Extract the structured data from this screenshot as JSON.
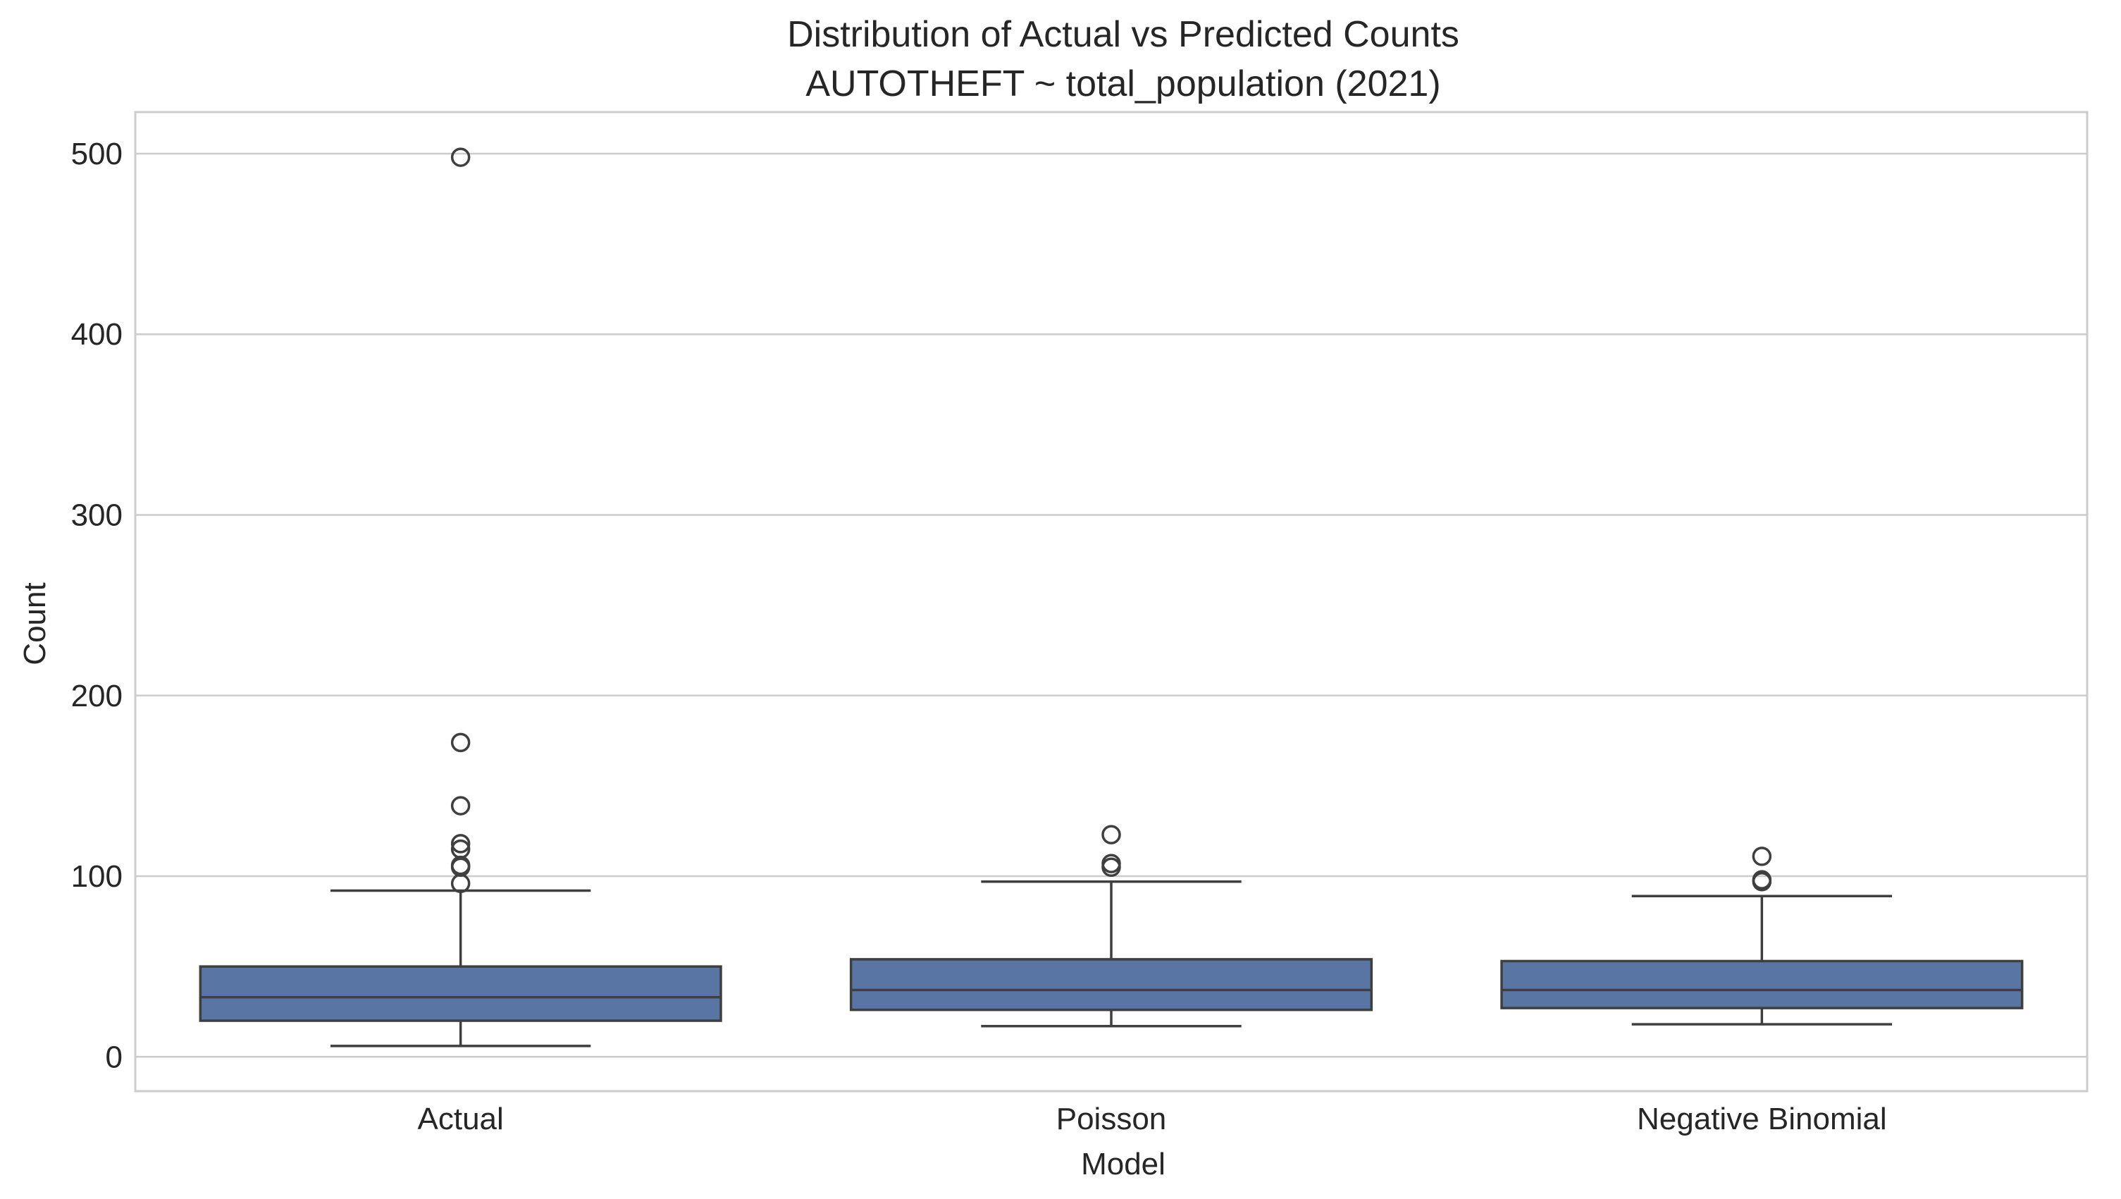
{
  "chart_data": {
    "type": "box",
    "title_line1": "Distribution of Actual vs Predicted Counts",
    "title_line2": "AUTOTHEFT ~ total_population (2021)",
    "xlabel": "Model",
    "ylabel": "Count",
    "ylim": [
      -19,
      523
    ],
    "yticks": [
      0,
      100,
      200,
      300,
      400,
      500
    ],
    "ytick_labels": [
      "0",
      "100",
      "200",
      "300",
      "400",
      "500"
    ],
    "grid": true,
    "box_color": "#5875a4",
    "line_color": "#3f3f3f",
    "grid_color": "#cccccc",
    "categories": [
      "Actual",
      "Poisson",
      "Negative Binomial"
    ],
    "boxes": [
      {
        "name": "Actual",
        "whislo": 6,
        "q1": 20,
        "median": 33,
        "q3": 50,
        "whishi": 92,
        "fliers": [
          96,
          105,
          106,
          115,
          118,
          139,
          174,
          498
        ]
      },
      {
        "name": "Poisson",
        "whislo": 17,
        "q1": 26,
        "median": 37,
        "q3": 54,
        "whishi": 97,
        "fliers": [
          105,
          107,
          123
        ]
      },
      {
        "name": "Negative Binomial",
        "whislo": 18,
        "q1": 27,
        "median": 37,
        "q3": 53,
        "whishi": 89,
        "fliers": [
          97,
          98,
          111
        ]
      }
    ]
  }
}
